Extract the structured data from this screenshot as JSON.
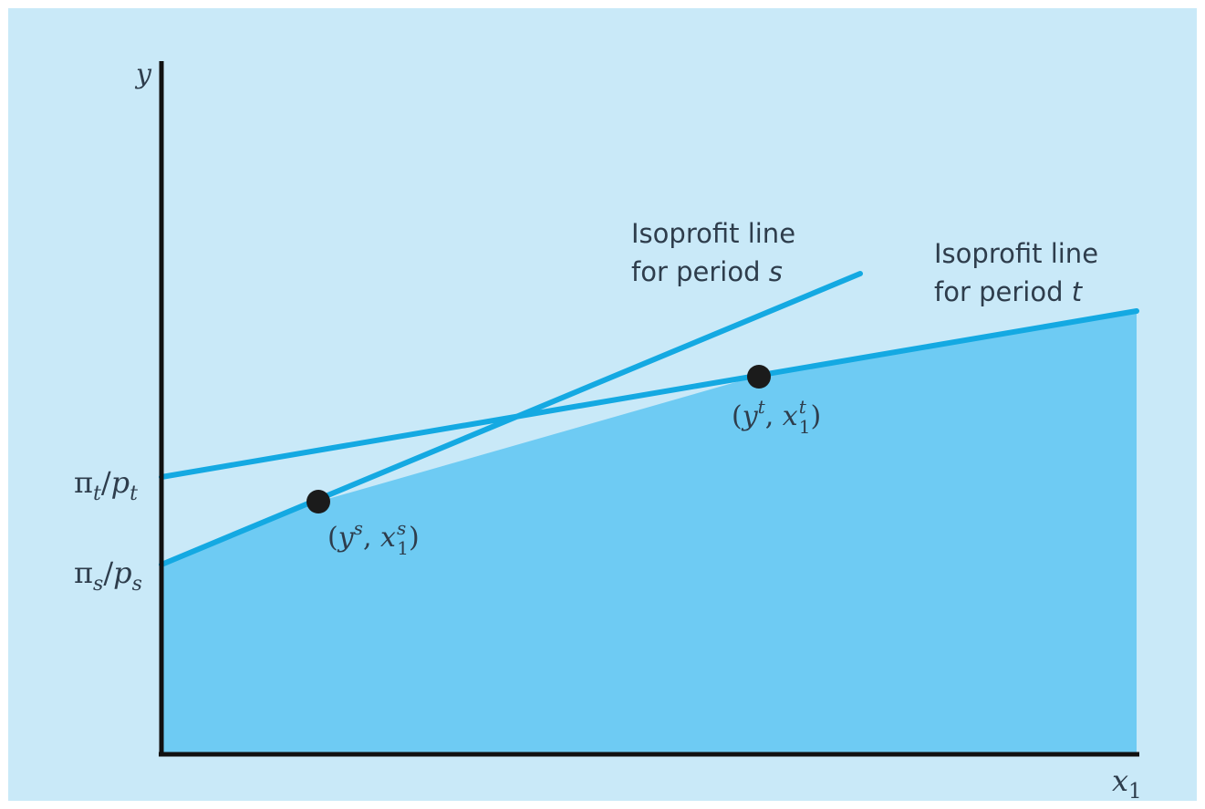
{
  "colors": {
    "panel_background": "#c9e9f8",
    "shaded_region": "#6ecbf3",
    "isoprofit_lines": "#14a9e2",
    "axes": "#111111",
    "points": "#1b1b1b",
    "text": "#2e3d4c"
  },
  "axes": {
    "y_label": "y",
    "x_label": "x",
    "x_label_subscript": "1"
  },
  "intercepts": {
    "pi_t_over_p_t": {
      "pi": "π",
      "pi_sub": "t",
      "slash": "/",
      "p": "p",
      "p_sub": "t"
    },
    "pi_s_over_p_s": {
      "pi": "π",
      "pi_sub": "s",
      "slash": "/",
      "p": "p",
      "p_sub": "s"
    }
  },
  "line_labels": {
    "period_s": {
      "line1": "Isoprofit line",
      "line2_prefix": "for period ",
      "line2_var": "s"
    },
    "period_t": {
      "line1": "Isoprofit line",
      "line2_prefix": "for period ",
      "line2_var": "t"
    }
  },
  "points": {
    "s": {
      "open": "(",
      "y": "y",
      "y_sup": "s",
      "comma": ", ",
      "x": "x",
      "x_sup": "s",
      "x_sub": "1",
      "close": ")"
    },
    "t": {
      "open": "(",
      "y": "y",
      "y_sup": "t",
      "comma": ", ",
      "x": "x",
      "x_sup": "t",
      "x_sub": "1",
      "close": ")"
    }
  }
}
